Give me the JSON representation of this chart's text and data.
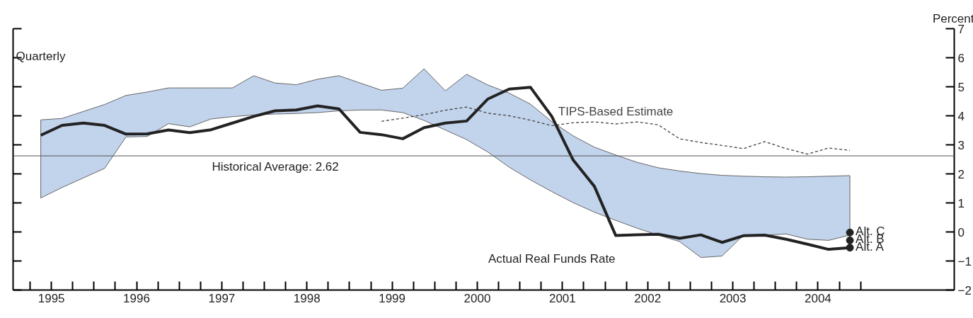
{
  "chart_data": {
    "type": "line",
    "ylabel": "Percent",
    "annotations": [
      "Quarterly"
    ],
    "xlim": [
      1994.8,
      2005.85
    ],
    "ylim": [
      -2,
      7
    ],
    "yticks": [
      -2,
      -1,
      0,
      1,
      2,
      3,
      4,
      5,
      6,
      7
    ],
    "xticks": [
      {
        "value": 1995.0,
        "label": null
      },
      {
        "value": 1995.25,
        "label": "1995"
      },
      {
        "value": 1995.5,
        "label": null
      },
      {
        "value": 1995.75,
        "label": null
      },
      {
        "value": 1996.0,
        "label": null
      },
      {
        "value": 1996.25,
        "label": "1996"
      },
      {
        "value": 1996.5,
        "label": null
      },
      {
        "value": 1996.75,
        "label": null
      },
      {
        "value": 1997.0,
        "label": null
      },
      {
        "value": 1997.25,
        "label": "1997"
      },
      {
        "value": 1997.5,
        "label": null
      },
      {
        "value": 1997.75,
        "label": null
      },
      {
        "value": 1998.0,
        "label": null
      },
      {
        "value": 1998.25,
        "label": "1998"
      },
      {
        "value": 1998.5,
        "label": null
      },
      {
        "value": 1998.75,
        "label": null
      },
      {
        "value": 1999.0,
        "label": null
      },
      {
        "value": 1999.25,
        "label": "1999"
      },
      {
        "value": 1999.5,
        "label": null
      },
      {
        "value": 1999.75,
        "label": null
      },
      {
        "value": 2000.0,
        "label": null
      },
      {
        "value": 2000.25,
        "label": "2000"
      },
      {
        "value": 2000.5,
        "label": null
      },
      {
        "value": 2000.75,
        "label": null
      },
      {
        "value": 2001.0,
        "label": null
      },
      {
        "value": 2001.25,
        "label": "2001"
      },
      {
        "value": 2001.5,
        "label": null
      },
      {
        "value": 2001.75,
        "label": null
      },
      {
        "value": 2002.0,
        "label": null
      },
      {
        "value": 2002.25,
        "label": "2002"
      },
      {
        "value": 2002.5,
        "label": null
      },
      {
        "value": 2002.75,
        "label": null
      },
      {
        "value": 2003.0,
        "label": null
      },
      {
        "value": 2003.25,
        "label": "2003"
      },
      {
        "value": 2003.5,
        "label": null
      },
      {
        "value": 2003.75,
        "label": null
      },
      {
        "value": 2004.0,
        "label": null
      },
      {
        "value": 2004.25,
        "label": "2004"
      },
      {
        "value": 2004.5,
        "label": null
      },
      {
        "value": 2004.75,
        "label": null
      }
    ],
    "x": [
      1995.125,
      1995.375,
      1995.625,
      1995.875,
      1996.125,
      1996.375,
      1996.625,
      1996.875,
      1997.125,
      1997.375,
      1997.625,
      1997.875,
      1998.125,
      1998.375,
      1998.625,
      1998.875,
      1999.125,
      1999.375,
      1999.625,
      1999.875,
      2000.125,
      2000.375,
      2000.625,
      2000.875,
      2001.125,
      2001.375,
      2001.625,
      2001.875,
      2002.125,
      2002.375,
      2002.625,
      2002.875,
      2003.125,
      2003.375,
      2003.625,
      2003.875,
      2004.125,
      2004.375,
      2004.625
    ],
    "ref_lines": [
      {
        "axis": "y",
        "value": 2.62,
        "label": "Historical Average: 2.62",
        "color": "#555555"
      }
    ],
    "grid": false,
    "series": [
      {
        "type": "area",
        "color": "#c2d3ec",
        "values": [
          null,
          null,
          null,
          null,
          null,
          null,
          null,
          null,
          null,
          null,
          null,
          null,
          null,
          null,
          null,
          null,
          null,
          null,
          null,
          null,
          null,
          null,
          null,
          null,
          null,
          null,
          null,
          null,
          null,
          null,
          null,
          null,
          null,
          null,
          null,
          null,
          null,
          null,
          null
        ],
        "upper": [
          3.86,
          3.91,
          4.15,
          4.39,
          4.7,
          4.82,
          4.96,
          4.96,
          4.96,
          4.96,
          5.38,
          5.13,
          5.07,
          5.26,
          5.38,
          5.13,
          4.88,
          4.95,
          5.62,
          4.86,
          5.43,
          5.06,
          4.78,
          4.4,
          3.8,
          3.31,
          2.92,
          2.65,
          2.4,
          2.21,
          2.1,
          2.01,
          1.95,
          1.92,
          1.9,
          1.89,
          1.9,
          1.92,
          1.94
        ],
        "lower": [
          1.17,
          1.53,
          1.86,
          2.19,
          3.27,
          3.29,
          3.73,
          3.62,
          3.89,
          3.97,
          4.03,
          4.06,
          4.08,
          4.11,
          4.17,
          4.2,
          4.2,
          4.11,
          3.84,
          3.51,
          3.18,
          2.75,
          2.23,
          1.79,
          1.39,
          1.01,
          0.68,
          0.4,
          0.13,
          -0.11,
          -0.33,
          -0.88,
          -0.83,
          -0.11,
          -0.11,
          -0.07,
          -0.25,
          -0.29,
          -0.11
        ]
      },
      {
        "type": "line",
        "name": "TIPS-Based Estimate",
        "color": "#444444",
        "line_style": "dotted",
        "values": [
          null,
          null,
          null,
          null,
          null,
          null,
          null,
          null,
          null,
          null,
          null,
          null,
          null,
          null,
          null,
          null,
          3.81,
          3.92,
          4.04,
          4.19,
          4.3,
          4.09,
          4.0,
          3.85,
          3.66,
          3.76,
          3.79,
          3.72,
          3.79,
          3.69,
          3.21,
          3.08,
          2.98,
          2.87,
          3.11,
          2.87,
          2.68,
          2.89,
          2.81
        ]
      },
      {
        "name": "Actual Real Funds Rate",
        "color": "#222222",
        "line_style": "solid",
        "values": [
          3.33,
          3.67,
          3.75,
          3.67,
          3.37,
          3.38,
          3.51,
          3.42,
          3.52,
          3.75,
          3.98,
          4.17,
          4.2,
          4.34,
          4.24,
          3.43,
          3.35,
          3.21,
          3.59,
          3.75,
          3.82,
          4.58,
          4.92,
          4.98,
          3.98,
          2.48,
          1.57,
          -0.12,
          -0.1,
          -0.08,
          -0.22,
          -0.1,
          -0.36,
          -0.13,
          -0.11,
          -0.25,
          -0.42,
          -0.6,
          -0.54
        ]
      },
      {
        "type": "scatter",
        "name": "Alt. C",
        "color": "#222222",
        "marker": "circle",
        "values": [
          null,
          null,
          null,
          null,
          null,
          null,
          null,
          null,
          null,
          null,
          null,
          null,
          null,
          null,
          null,
          null,
          null,
          null,
          null,
          null,
          null,
          null,
          null,
          null,
          null,
          null,
          null,
          null,
          null,
          null,
          null,
          null,
          null,
          null,
          null,
          null,
          null,
          null,
          -0.02
        ]
      },
      {
        "type": "scatter",
        "name": "Alt. B",
        "color": "#222222",
        "marker": "circle",
        "values": [
          null,
          null,
          null,
          null,
          null,
          null,
          null,
          null,
          null,
          null,
          null,
          null,
          null,
          null,
          null,
          null,
          null,
          null,
          null,
          null,
          null,
          null,
          null,
          null,
          null,
          null,
          null,
          null,
          null,
          null,
          null,
          null,
          null,
          null,
          null,
          null,
          null,
          null,
          -0.29
        ]
      },
      {
        "type": "scatter",
        "name": "Alt. A",
        "color": "#222222",
        "marker": "circle",
        "values": [
          null,
          null,
          null,
          null,
          null,
          null,
          null,
          null,
          null,
          null,
          null,
          null,
          null,
          null,
          null,
          null,
          null,
          null,
          null,
          null,
          null,
          null,
          null,
          null,
          null,
          null,
          null,
          null,
          null,
          null,
          null,
          null,
          null,
          null,
          null,
          null,
          null,
          null,
          -0.54
        ]
      }
    ]
  }
}
